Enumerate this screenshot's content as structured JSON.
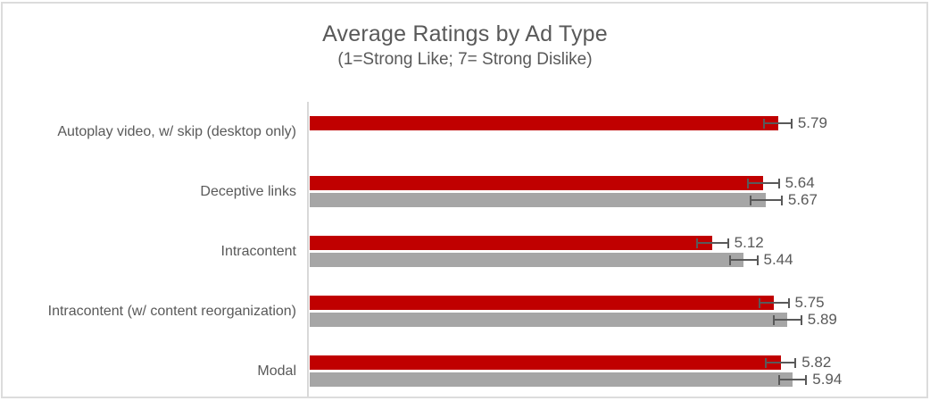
{
  "frame": {
    "background": "#FFFFFF",
    "border_color": "#DCDCDC"
  },
  "chart_data": {
    "type": "bar",
    "orientation": "horizontal",
    "title": "Average Ratings by Ad Type",
    "subtitle": "(1=Strong Like; 7= Strong Dislike)",
    "categories": [
      "Autoplay video, w/ skip (desktop only)",
      "Deceptive links",
      "Intracontent",
      "Intracontent (w/ content reorganization)",
      "Modal"
    ],
    "xlim": [
      1,
      7
    ],
    "value_axis_visible": false,
    "category_axis_line_color": "#D9D9D9",
    "grid": false,
    "legend_visible": false,
    "data_labels_visible": true,
    "error_bars_visible": true,
    "error_bar_color": "#595959",
    "text_color": "#595959",
    "series": [
      {
        "name": "red",
        "color": "#C00000",
        "values": [
          5.79,
          5.64,
          5.12,
          5.75,
          5.82
        ],
        "errors": [
          0.14,
          0.16,
          0.16,
          0.15,
          0.15
        ],
        "labels": [
          "5.79",
          "5.64",
          "5.12",
          "5.75",
          "5.82"
        ]
      },
      {
        "name": "gray",
        "color": "#A6A6A6",
        "values": [
          null,
          5.67,
          5.44,
          5.89,
          5.94
        ],
        "errors": [
          null,
          0.16,
          0.14,
          0.14,
          0.14
        ],
        "labels": [
          null,
          "5.67",
          "5.44",
          "5.89",
          "5.94"
        ]
      }
    ]
  }
}
